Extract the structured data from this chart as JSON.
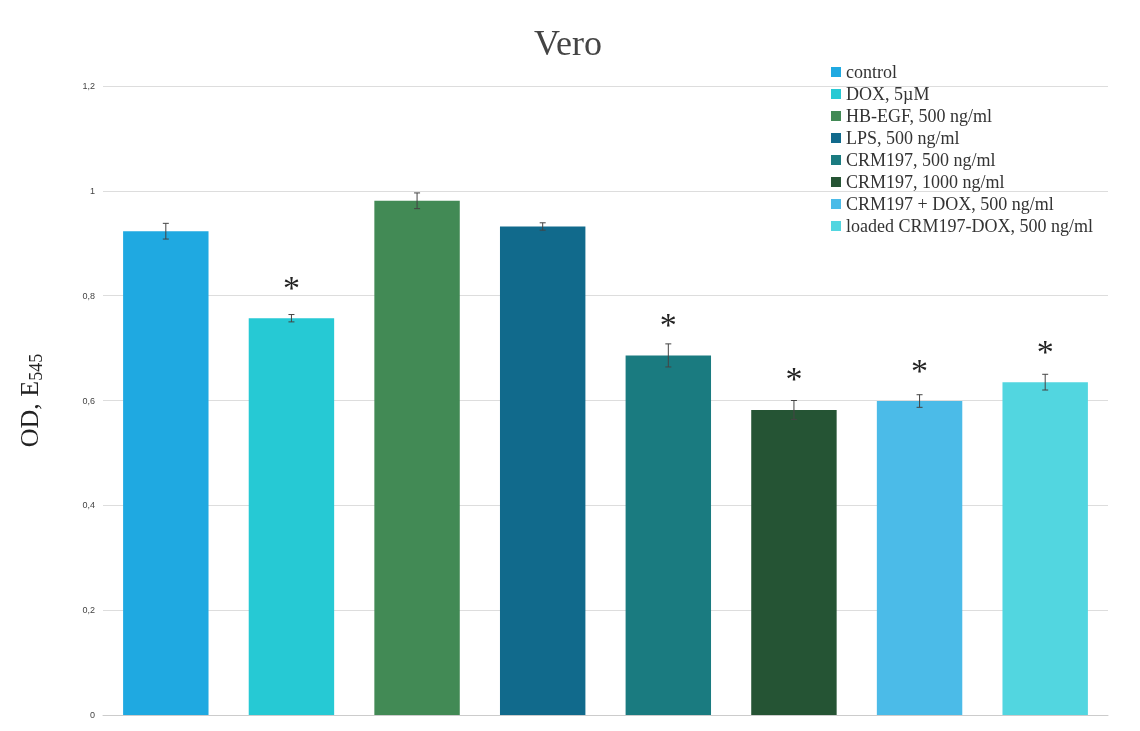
{
  "chart_data": {
    "type": "bar",
    "title": "Vero",
    "ylabel": "OD, E$_{545}$",
    "categories": [
      null,
      null,
      null,
      null,
      null,
      null,
      null,
      null
    ],
    "series": [
      {
        "name": "control",
        "color": "#1fa9e1",
        "values": [
          0.923,
          null,
          null,
          null,
          null,
          null,
          null,
          null
        ],
        "errors": [
          0.015,
          null,
          null,
          null,
          null,
          null,
          null,
          null
        ]
      },
      {
        "name": "DOX, 5µM",
        "color": "#26c9d4",
        "values": [
          null,
          0.757,
          null,
          null,
          null,
          null,
          null,
          null
        ],
        "errors": [
          null,
          0.007,
          null,
          null,
          null,
          null,
          null,
          null
        ],
        "value_labels": [
          null,
          "*",
          null,
          null,
          null,
          null,
          null,
          null
        ]
      },
      {
        "name": "HB-EGF, 500 ng/ml",
        "color": "#428a55",
        "values": [
          null,
          null,
          0.981,
          null,
          null,
          null,
          null,
          null
        ],
        "errors": [
          null,
          null,
          0.015,
          null,
          null,
          null,
          null,
          null
        ]
      },
      {
        "name": "LPS, 500 ng/ml",
        "color": "#116a8c",
        "values": [
          null,
          null,
          null,
          0.932,
          null,
          null,
          null,
          null
        ],
        "errors": [
          null,
          null,
          null,
          0.007,
          null,
          null,
          null,
          null
        ]
      },
      {
        "name": "CRM197, 500 ng/ml",
        "color": "#1a7b80",
        "values": [
          null,
          null,
          null,
          null,
          0.686,
          null,
          null,
          null
        ],
        "errors": [
          null,
          null,
          null,
          null,
          0.022,
          null,
          null,
          null
        ],
        "value_labels": [
          null,
          null,
          null,
          null,
          "*",
          null,
          null,
          null
        ]
      },
      {
        "name": "CRM197, 1000 ng/ml",
        "color": "#255434",
        "values": [
          null,
          null,
          null,
          null,
          null,
          0.582,
          null,
          null
        ],
        "errors": [
          null,
          null,
          null,
          null,
          null,
          0.018,
          null,
          null
        ],
        "value_labels": [
          null,
          null,
          null,
          null,
          null,
          "*",
          null,
          null
        ]
      },
      {
        "name": "CRM197 + DOX, 500 ng/ml",
        "color": "#4bbbe8",
        "values": [
          null,
          null,
          null,
          null,
          null,
          null,
          0.599,
          null
        ],
        "errors": [
          null,
          null,
          null,
          null,
          null,
          null,
          0.012,
          null
        ],
        "value_labels": [
          null,
          null,
          null,
          null,
          null,
          null,
          "*",
          null
        ]
      },
      {
        "name": "loaded CRM197-DOX, 500 ng/ml",
        "color": "#52d6e0",
        "values": [
          null,
          null,
          null,
          null,
          null,
          null,
          null,
          0.635
        ],
        "errors": [
          null,
          null,
          null,
          null,
          null,
          null,
          null,
          0.015
        ],
        "value_labels": [
          null,
          null,
          null,
          null,
          null,
          null,
          null,
          "*"
        ]
      }
    ],
    "ylim": [
      0,
      1.2
    ],
    "yticks": [
      {
        "value": 0,
        "label": "0"
      },
      {
        "value": 0.2,
        "label": "0,2"
      },
      {
        "value": 0.4,
        "label": "0,4"
      },
      {
        "value": 0.6,
        "label": "0,6"
      },
      {
        "value": 0.8,
        "label": "0,8"
      },
      {
        "value": 1,
        "label": "1"
      },
      {
        "value": 1.2,
        "label": "1,2"
      }
    ],
    "grid": "y",
    "legend": "top right"
  }
}
